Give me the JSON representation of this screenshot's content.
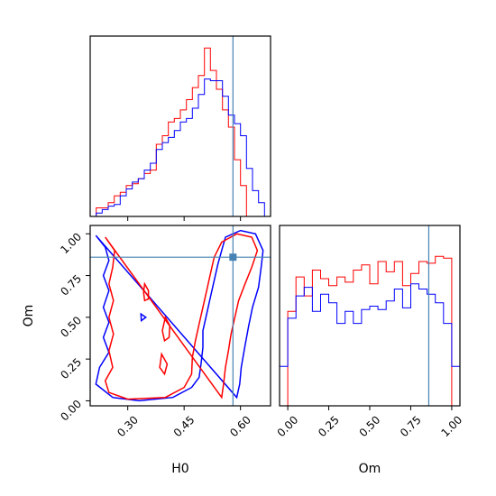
{
  "chart_data": {
    "type": "corner",
    "colors": {
      "red": "#ff0000",
      "blue": "#0000ff",
      "truth": "#4682b4"
    },
    "truth": {
      "H0": 0.58,
      "Om": 0.86
    },
    "panels": [
      {
        "panel": "hist-H0",
        "type": "step-histogram",
        "xlim": [
          0.2,
          0.68
        ],
        "ylim": [
          0,
          1.05
        ],
        "bins": [
          0.2,
          0.216,
          0.232,
          0.248,
          0.264,
          0.28,
          0.296,
          0.312,
          0.328,
          0.344,
          0.36,
          0.376,
          0.392,
          0.408,
          0.424,
          0.44,
          0.456,
          0.472,
          0.488,
          0.504,
          0.52,
          0.536,
          0.552,
          0.568,
          0.584,
          0.6,
          0.616,
          0.632,
          0.648,
          0.664,
          0.68
        ],
        "series": [
          {
            "color": "red",
            "values": [
              0.0,
              0.05,
              0.05,
              0.08,
              0.12,
              0.14,
              0.18,
              0.19,
              0.22,
              0.25,
              0.27,
              0.42,
              0.47,
              0.55,
              0.57,
              0.62,
              0.68,
              0.75,
              0.82,
              0.98,
              0.85,
              0.74,
              0.62,
              0.52,
              0.33,
              0.18,
              0.0,
              0.0,
              0.0,
              0.0
            ]
          },
          {
            "color": "blue",
            "values": [
              0.0,
              0.02,
              0.04,
              0.06,
              0.07,
              0.12,
              0.16,
              0.2,
              0.22,
              0.27,
              0.31,
              0.39,
              0.43,
              0.46,
              0.5,
              0.55,
              0.57,
              0.63,
              0.71,
              0.8,
              0.79,
              0.79,
              0.7,
              0.59,
              0.54,
              0.47,
              0.28,
              0.15,
              0.08,
              0.0
            ]
          }
        ]
      },
      {
        "panel": "contour-H0-Om",
        "type": "contour",
        "xlabel": "H0",
        "ylabel": "Om",
        "xlim": [
          0.2,
          0.68
        ],
        "ylim": [
          -0.03,
          1.05
        ],
        "xticks": [
          "0.30",
          "0.45",
          "0.60"
        ],
        "xtick_values": [
          0.3,
          0.45,
          0.6
        ],
        "yticks": [
          "0.00",
          "0.25",
          "0.50",
          "0.75",
          "1.00"
        ],
        "ytick_values": [
          0.0,
          0.25,
          0.5,
          0.75,
          1.0
        ],
        "contours": [
          {
            "color": "blue",
            "points": [
              [
                0.215,
                0.99
              ],
              [
                0.24,
                0.92
              ],
              [
                0.25,
                0.84
              ],
              [
                0.235,
                0.75
              ],
              [
                0.25,
                0.66
              ],
              [
                0.235,
                0.56
              ],
              [
                0.25,
                0.47
              ],
              [
                0.235,
                0.38
              ],
              [
                0.25,
                0.29
              ],
              [
                0.225,
                0.2
              ],
              [
                0.215,
                0.1
              ],
              [
                0.26,
                0.02
              ],
              [
                0.33,
                0.0
              ],
              [
                0.42,
                0.02
              ],
              [
                0.47,
                0.08
              ],
              [
                0.49,
                0.14
              ],
              [
                0.495,
                0.22
              ],
              [
                0.5,
                0.32
              ],
              [
                0.5,
                0.42
              ],
              [
                0.51,
                0.52
              ],
              [
                0.52,
                0.62
              ],
              [
                0.53,
                0.72
              ],
              [
                0.54,
                0.82
              ],
              [
                0.55,
                0.9
              ],
              [
                0.56,
                0.98
              ],
              [
                0.6,
                1.02
              ],
              [
                0.64,
                1.0
              ],
              [
                0.66,
                0.9
              ],
              [
                0.655,
                0.8
              ],
              [
                0.648,
                0.68
              ],
              [
                0.632,
                0.56
              ],
              [
                0.622,
                0.45
              ],
              [
                0.612,
                0.33
              ],
              [
                0.602,
                0.2
              ],
              [
                0.598,
                0.1
              ],
              [
                0.59,
                0.02
              ]
            ]
          },
          {
            "color": "red",
            "points": [
              [
                0.24,
                0.98
              ],
              [
                0.265,
                0.9
              ],
              [
                0.26,
                0.8
              ],
              [
                0.25,
                0.7
              ],
              [
                0.262,
                0.6
              ],
              [
                0.25,
                0.5
              ],
              [
                0.262,
                0.4
              ],
              [
                0.25,
                0.3
              ],
              [
                0.26,
                0.2
              ],
              [
                0.24,
                0.12
              ],
              [
                0.25,
                0.05
              ],
              [
                0.3,
                0.01
              ],
              [
                0.4,
                0.02
              ],
              [
                0.45,
                0.08
              ],
              [
                0.47,
                0.16
              ],
              [
                0.472,
                0.26
              ],
              [
                0.48,
                0.36
              ],
              [
                0.49,
                0.46
              ],
              [
                0.5,
                0.56
              ],
              [
                0.51,
                0.66
              ],
              [
                0.52,
                0.76
              ],
              [
                0.53,
                0.86
              ],
              [
                0.55,
                0.95
              ],
              [
                0.59,
                1.0
              ],
              [
                0.63,
                0.98
              ],
              [
                0.645,
                0.9
              ],
              [
                0.63,
                0.8
              ],
              [
                0.612,
                0.7
              ],
              [
                0.595,
                0.6
              ],
              [
                0.585,
                0.5
              ],
              [
                0.575,
                0.4
              ],
              [
                0.568,
                0.3
              ],
              [
                0.56,
                0.2
              ],
              [
                0.555,
                0.1
              ],
              [
                0.55,
                0.02
              ]
            ]
          },
          {
            "color": "red",
            "points": [
              [
                0.345,
                0.7
              ],
              [
                0.355,
                0.66
              ],
              [
                0.355,
                0.61
              ],
              [
                0.345,
                0.6
              ],
              [
                0.342,
                0.65
              ]
            ]
          },
          {
            "color": "red",
            "points": [
              [
                0.4,
                0.5
              ],
              [
                0.412,
                0.45
              ],
              [
                0.41,
                0.38
              ],
              [
                0.398,
                0.36
              ],
              [
                0.392,
                0.42
              ]
            ]
          },
          {
            "color": "red",
            "points": [
              [
                0.39,
                0.28
              ],
              [
                0.405,
                0.22
              ],
              [
                0.398,
                0.16
              ],
              [
                0.385,
                0.2
              ]
            ]
          },
          {
            "color": "blue",
            "points": [
              [
                0.335,
                0.52
              ],
              [
                0.348,
                0.5
              ],
              [
                0.336,
                0.48
              ]
            ]
          }
        ]
      },
      {
        "panel": "hist-Om",
        "type": "step-histogram",
        "xlabel": "Om",
        "xlim": [
          -0.05,
          1.05
        ],
        "ylim": [
          0,
          1.05
        ],
        "xticks": [
          "0.00",
          "0.25",
          "0.50",
          "0.75",
          "1.00"
        ],
        "xtick_values": [
          0.0,
          0.25,
          0.5,
          0.75,
          1.0
        ],
        "bins": [
          -0.05,
          0.0,
          0.05,
          0.1,
          0.15,
          0.2,
          0.25,
          0.3,
          0.35,
          0.4,
          0.45,
          0.5,
          0.55,
          0.6,
          0.65,
          0.7,
          0.75,
          0.8,
          0.85,
          0.9,
          0.95,
          1.0,
          1.05
        ],
        "series": [
          {
            "color": "red",
            "values": [
              0.0,
              0.55,
              0.75,
              0.64,
              0.79,
              0.74,
              0.7,
              0.75,
              0.72,
              0.79,
              0.82,
              0.71,
              0.84,
              0.78,
              0.84,
              0.7,
              0.77,
              0.84,
              0.83,
              0.87,
              0.86,
              0.0
            ]
          },
          {
            "color": "blue",
            "values": [
              0.23,
              0.51,
              0.64,
              0.69,
              0.55,
              0.65,
              0.6,
              0.48,
              0.55,
              0.48,
              0.56,
              0.58,
              0.56,
              0.61,
              0.68,
              0.57,
              0.71,
              0.68,
              0.65,
              0.6,
              0.48,
              0.23
            ]
          }
        ]
      }
    ]
  }
}
